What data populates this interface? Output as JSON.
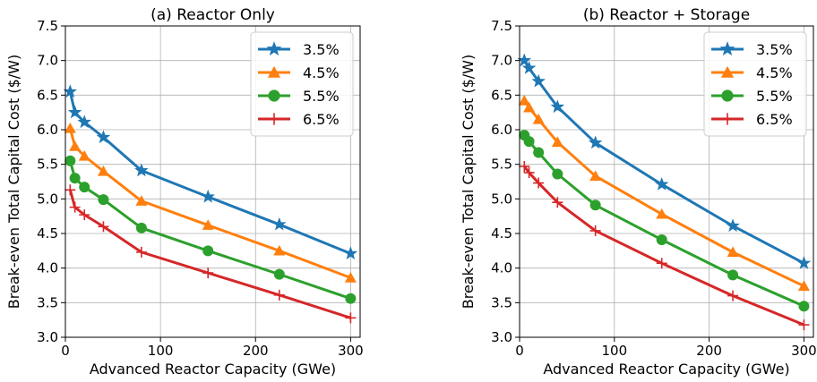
{
  "chart_data": [
    {
      "type": "line",
      "title": "(a) Reactor Only",
      "xlabel": "Advanced Reactor Capacity (GWe)",
      "ylabel": "Break-even Total Capital Cost ($/W)",
      "xlim": [
        0,
        310
      ],
      "ylim": [
        3.0,
        7.5
      ],
      "xticks": [
        0,
        100,
        200,
        300
      ],
      "yticks": [
        3.0,
        3.5,
        4.0,
        4.5,
        5.0,
        5.5,
        6.0,
        6.5,
        7.0,
        7.5
      ],
      "xtick_labels": [
        "0",
        "100",
        "200",
        "300"
      ],
      "ytick_labels": [
        "3.0",
        "3.5",
        "4.0",
        "4.5",
        "5.0",
        "5.5",
        "6.0",
        "6.5",
        "7.0",
        "7.5"
      ],
      "grid": true,
      "legend_position": "top-right",
      "x": [
        5,
        10,
        20,
        40,
        80,
        150,
        225,
        300
      ],
      "series": [
        {
          "name": "3.5%",
          "color": "#1f77b4",
          "marker": "star",
          "values": [
            6.55,
            6.25,
            6.11,
            5.89,
            5.41,
            5.03,
            4.63,
            4.21
          ]
        },
        {
          "name": "4.5%",
          "color": "#ff7f0e",
          "marker": "triangle",
          "values": [
            6.02,
            5.76,
            5.62,
            5.4,
            4.97,
            4.62,
            4.25,
            3.86
          ]
        },
        {
          "name": "5.5%",
          "color": "#2ca02c",
          "marker": "circle",
          "values": [
            5.55,
            5.3,
            5.17,
            4.99,
            4.58,
            4.25,
            3.91,
            3.56
          ]
        },
        {
          "name": "6.5%",
          "color": "#d62728",
          "marker": "plus",
          "values": [
            5.13,
            4.88,
            4.77,
            4.6,
            4.23,
            3.93,
            3.61,
            3.28
          ]
        }
      ]
    },
    {
      "type": "line",
      "title": "(b) Reactor + Storage",
      "xlabel": "Advanced Reactor Capacity (GWe)",
      "ylabel": "Break-even Total Capital Cost ($/W)",
      "xlim": [
        0,
        310
      ],
      "ylim": [
        3.0,
        7.5
      ],
      "xticks": [
        0,
        100,
        200,
        300
      ],
      "yticks": [
        3.0,
        3.5,
        4.0,
        4.5,
        5.0,
        5.5,
        6.0,
        6.5,
        7.0,
        7.5
      ],
      "xtick_labels": [
        "0",
        "100",
        "200",
        "300"
      ],
      "ytick_labels": [
        "3.0",
        "3.5",
        "4.0",
        "4.5",
        "5.0",
        "5.5",
        "6.0",
        "6.5",
        "7.0",
        "7.5"
      ],
      "grid": true,
      "legend_position": "top-right",
      "x": [
        5,
        10,
        20,
        40,
        80,
        150,
        225,
        300
      ],
      "series": [
        {
          "name": "3.5%",
          "color": "#1f77b4",
          "marker": "star",
          "values": [
            7.0,
            6.89,
            6.7,
            6.33,
            5.81,
            5.21,
            4.61,
            4.07
          ]
        },
        {
          "name": "4.5%",
          "color": "#ff7f0e",
          "marker": "triangle",
          "values": [
            6.42,
            6.32,
            6.15,
            5.82,
            5.33,
            4.78,
            4.23,
            3.74
          ]
        },
        {
          "name": "5.5%",
          "color": "#2ca02c",
          "marker": "circle",
          "values": [
            5.92,
            5.83,
            5.67,
            5.36,
            4.91,
            4.41,
            3.9,
            3.45
          ]
        },
        {
          "name": "6.5%",
          "color": "#d62728",
          "marker": "plus",
          "values": [
            5.47,
            5.38,
            5.23,
            4.95,
            4.54,
            4.07,
            3.6,
            3.18
          ]
        }
      ]
    }
  ]
}
